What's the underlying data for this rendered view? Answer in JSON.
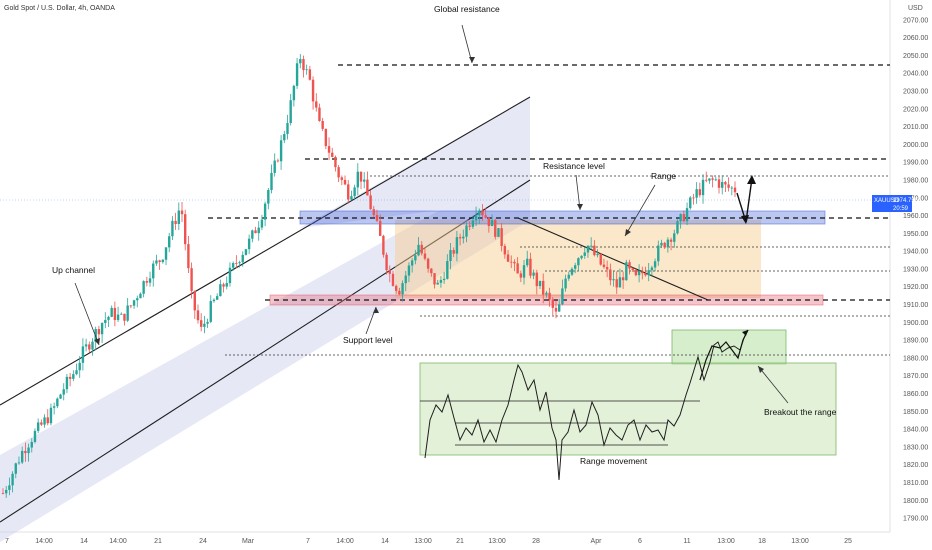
{
  "header": {
    "symbol_title": "Gold Spot / U.S. Dollar, 4h, OANDA"
  },
  "price_panel": {
    "currency": "USD",
    "ticker": "XAUUSD",
    "last_price": "1974.755",
    "countdown": "20:59"
  },
  "annotations": {
    "global_resistance": "Global resistance",
    "resistance_level": "Resistance level",
    "range": "Range",
    "up_channel": "Up channel",
    "support_level": "Support level",
    "range_movement": "Range movement",
    "breakout": "Breakout the range"
  },
  "colors": {
    "bull": "#26a69a",
    "bear": "#ef5350",
    "resistance_zone": "#3f5fd6",
    "support_zone": "#e25a6a",
    "range_box": "#f6c98a",
    "channel_fill": "#c9cbeb",
    "breakout_box": "#b4e0a0",
    "price_tag": "#2962ff"
  },
  "chart_data": {
    "type": "candlestick",
    "title": "Gold Spot / U.S. Dollar, 4h, OANDA",
    "y_unit": "USD",
    "ylim": [
      1785,
      2080
    ],
    "y_ticks": [
      2070,
      2060,
      2050,
      2040,
      2030,
      2020,
      2010,
      2000,
      1990,
      1980,
      1970,
      1960,
      1950,
      1940,
      1930,
      1920,
      1910,
      1900,
      1890,
      1880,
      1870,
      1860,
      1850,
      1840,
      1830,
      1820,
      1810,
      1800,
      1790
    ],
    "x_ticks": [
      "7",
      "14:00",
      "14",
      "14:00",
      "21",
      "24",
      "Mar",
      "7",
      "14:00",
      "14",
      "13:00",
      "21",
      "13:00",
      "28",
      "Apr",
      "6",
      "11",
      "13:00",
      "18",
      "13:00",
      "25"
    ],
    "last_price": 1974.755,
    "levels": {
      "global_resistance": 2050,
      "resistance_upper": 1997,
      "resistance_mid": 1988,
      "range_top": 1965,
      "range_inner_1": 1948,
      "range_inner_2": 1934,
      "range_bottom": 1917,
      "range_lower": 1910,
      "support_low": 1887
    },
    "zones": {
      "resistance_zone": [
        1961,
        1968
      ],
      "support_zone": [
        1914,
        1920
      ],
      "range_box": [
        1918,
        1966
      ]
    },
    "price_path": [
      1804,
      1816,
      1828,
      1836,
      1843,
      1850,
      1862,
      1870,
      1882,
      1891,
      1900,
      1905,
      1902,
      1910,
      1920,
      1930,
      1936,
      1952,
      1966,
      1915,
      1895,
      1908,
      1918,
      1928,
      1938,
      1946,
      1958,
      1978,
      1998,
      2020,
      2050,
      2036,
      2010,
      1996,
      1982,
      1972,
      1985,
      1968,
      1950,
      1928,
      1918,
      1930,
      1944,
      1928,
      1920,
      1934,
      1946,
      1955,
      1966,
      1958,
      1950,
      1938,
      1926,
      1932,
      1922,
      1914,
      1903,
      1928,
      1936,
      1944,
      1936,
      1928,
      1920,
      1930,
      1924,
      1930,
      1938,
      1946,
      1952,
      1962,
      1972,
      1978,
      1980,
      1976,
      1974.755
    ]
  }
}
